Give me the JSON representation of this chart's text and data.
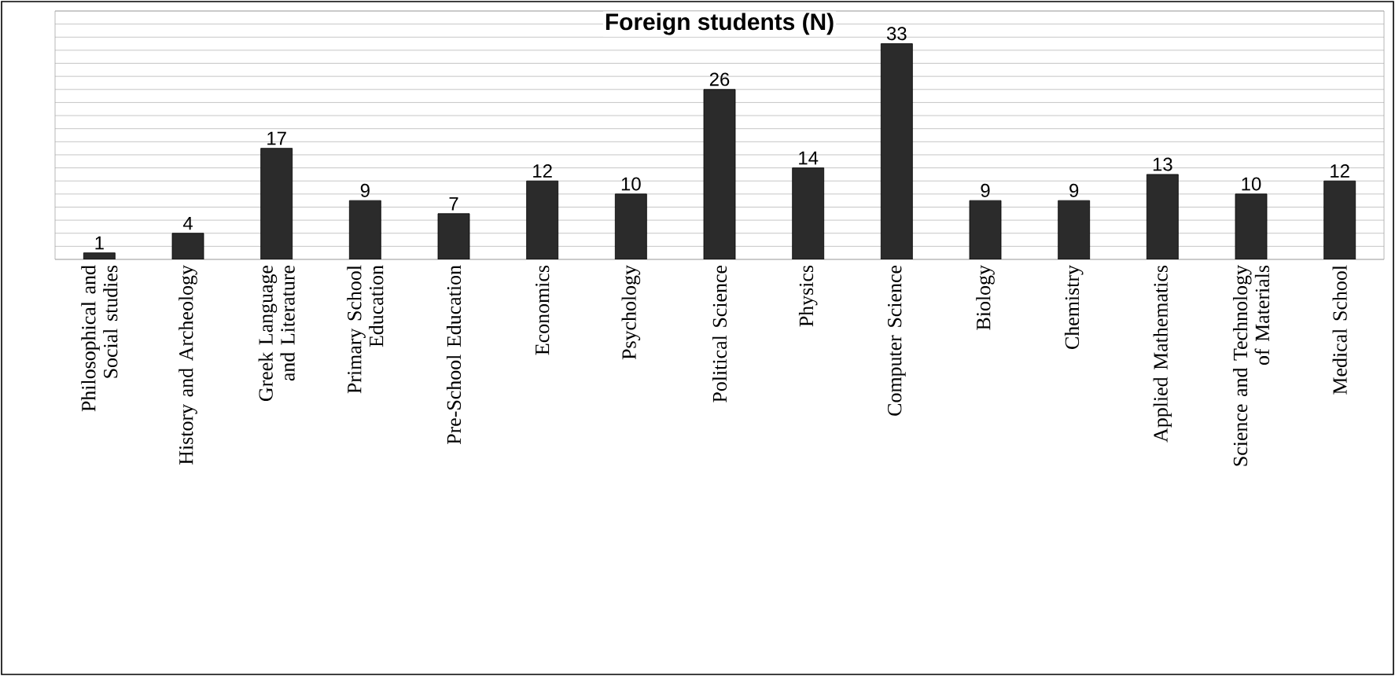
{
  "chart_data": {
    "type": "bar",
    "title": "Foreign students (N)",
    "categories": [
      "Philosophical and Social studies",
      "History and Archeology",
      "Greek Language and Literature",
      "Primary School Education",
      "Pre-School Education",
      "Economics",
      "Psychology",
      "Political Science",
      "Physics",
      "Computer Science",
      "Biology",
      "Chemistry",
      "Applied Mathematics",
      "Science and Technology of Materials",
      "Medical School"
    ],
    "values": [
      1,
      4,
      17,
      9,
      7,
      12,
      10,
      26,
      14,
      33,
      9,
      9,
      13,
      10,
      12
    ],
    "color": "#2b2b2b",
    "data_labels": true,
    "grid": "y",
    "ylim": [
      0,
      38
    ],
    "yticks": [
      0,
      2,
      4,
      6,
      8,
      10,
      12,
      14,
      16,
      18,
      20,
      22,
      24,
      26,
      28,
      30,
      32,
      34,
      36,
      38
    ],
    "tick_labels": "x"
  }
}
